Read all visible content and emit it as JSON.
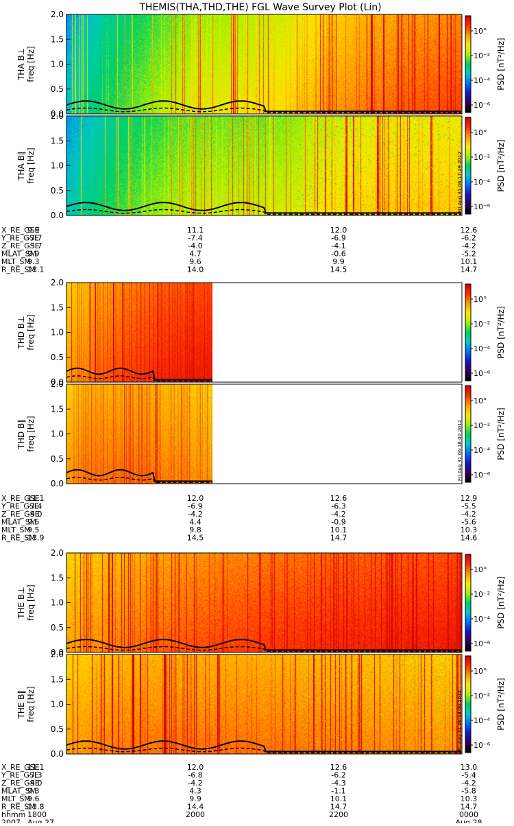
{
  "title": "THEMIS(THA,THD,THE) FGL Wave Survey Plot (Lin)",
  "chart_data": {
    "type": "heatmap",
    "title": "THEMIS(THA,THD,THE) FGL Wave Survey Plot (Lin)",
    "ylabel_unit": "freq [Hz]",
    "ylim": [
      0,
      2.0
    ],
    "yticks": [
      "0.0",
      "0.5",
      "1.0",
      "1.5",
      "2.0"
    ],
    "colorbar": {
      "label": "PSD [nT²/Hz]",
      "ticks": [
        "10°",
        "10⁻²",
        "10⁻⁴",
        "10⁻⁶"
      ],
      "colors": [
        "#d40000",
        "#ff3000",
        "#ff9a00",
        "#ffe600",
        "#a8f000",
        "#00d060",
        "#00c8c8",
        "#0070ff",
        "#1818c0",
        "#300060",
        "#000000"
      ]
    },
    "groups": [
      {
        "probe": "THA",
        "panels": [
          {
            "label": "THA B⊥",
            "stamp": ""
          },
          {
            "label": "THA B∥",
            "stamp": "Fri Aug 31 06:17:29 2012"
          }
        ],
        "orbit": {
          "labels": [
            "X_RE_GSE",
            "Y_RE_GSE",
            "Z_RE_GSE",
            "MLAT_SM",
            "MLT_SM",
            "R_RE_SM"
          ],
          "columns": [
            [
              "9.9",
              "-7.7",
              "-3.7",
              "9.9",
              "9.3",
              "13.1"
            ],
            [
              "11.1",
              "-7.4",
              "-4.0",
              "4.7",
              "9.6",
              "14.0"
            ],
            [
              "12.0",
              "-6.9",
              "-4.1",
              "-0.6",
              "9.9",
              "14.5"
            ],
            [
              "12.6",
              "-6.2",
              "-4.2",
              "-5.2",
              "10.1",
              "14.7"
            ]
          ]
        }
      },
      {
        "probe": "THD",
        "panels": [
          {
            "label": "THD B⊥",
            "stamp": ""
          },
          {
            "label": "THD B∥",
            "stamp": "Fri Aug 31 06:18:00 2012"
          }
        ],
        "orbit": {
          "labels": [
            "X_RE_GSE",
            "Y_RE_GSE",
            "Z_RE_GSE",
            "MLAT_SM",
            "MLT_SM",
            "R_RE_SM"
          ],
          "columns": [
            [
              "11.1",
              "-7.4",
              "-4.0",
              "9.5",
              "9.5",
              "13.9"
            ],
            [
              "12.0",
              "-6.9",
              "-4.2",
              "4.4",
              "9.8",
              "14.5"
            ],
            [
              "12.6",
              "-6.3",
              "-4.2",
              "-0.9",
              "10.1",
              "14.7"
            ],
            [
              "12.9",
              "-5.5",
              "-4.2",
              "-5.6",
              "10.3",
              "14.6"
            ]
          ]
        }
      },
      {
        "probe": "THE",
        "panels": [
          {
            "label": "THE B⊥",
            "stamp": ""
          },
          {
            "label": "THE B∥",
            "stamp": "Fri Aug 31 06:18:00 2012"
          }
        ],
        "orbit": {
          "labels": [
            "X_RE_GSE",
            "Y_RE_GSE",
            "Z_RE_GSE",
            "MLAT_SM",
            "MLT_SM",
            "R_RE_SM",
            "hhmm",
            "2007"
          ],
          "columns": [
            [
              "11.1",
              "-7.3",
              "-4.0",
              "9.3",
              "9.6",
              "13.8",
              "1800",
              "Aug 27"
            ],
            [
              "12.0",
              "-6.8",
              "-4.2",
              "4.3",
              "9.9",
              "14.4",
              "2000",
              ""
            ],
            [
              "12.6",
              "-6.2",
              "-4.3",
              "-1.1",
              "10.1",
              "14.7",
              "2200",
              ""
            ],
            [
              "13.0",
              "-5.4",
              "-4.2",
              "-5.8",
              "10.3",
              "14.7",
              "0000",
              "Aug 28"
            ]
          ]
        }
      }
    ],
    "time_axis": {
      "start": "1800",
      "end": "0000",
      "ticks": [
        "1800",
        "2000",
        "2200",
        "0000"
      ]
    }
  }
}
